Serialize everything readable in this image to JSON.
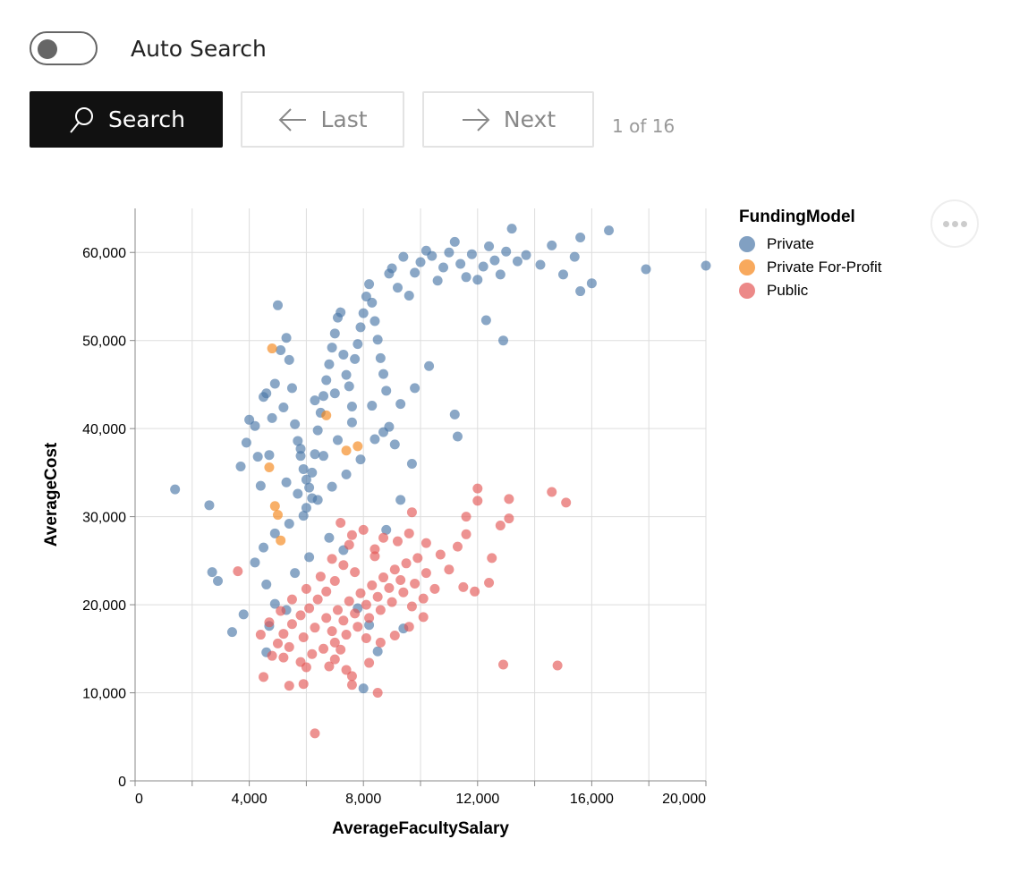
{
  "controls": {
    "auto_search_label": "Auto Search",
    "auto_search_on": false,
    "search_label": "Search",
    "last_label": "Last",
    "next_label": "Next",
    "page_indicator": "1 of 16"
  },
  "chart_data": {
    "type": "scatter",
    "xlabel": "AverageFacultySalary",
    "ylabel": "AverageCost",
    "xlim": [
      0,
      20000
    ],
    "ylim": [
      0,
      65000
    ],
    "x_ticks": [
      "0",
      "4,000",
      "8,000",
      "12,000",
      "16,000",
      "20,000"
    ],
    "y_ticks": [
      "0",
      "10,000",
      "20,000",
      "30,000",
      "40,000",
      "50,000",
      "60,000"
    ],
    "grid": true,
    "legend": {
      "title": "FundingModel",
      "placement": "top-right"
    },
    "series": [
      {
        "name": "Private",
        "color": "#4c78a8",
        "points": [
          [
            1400,
            33100
          ],
          [
            2600,
            31300
          ],
          [
            2700,
            23700
          ],
          [
            2900,
            22700
          ],
          [
            3400,
            16900
          ],
          [
            3800,
            18900
          ],
          [
            3700,
            35700
          ],
          [
            3900,
            38400
          ],
          [
            4000,
            41000
          ],
          [
            4200,
            40300
          ],
          [
            4300,
            36800
          ],
          [
            4400,
            33500
          ],
          [
            4500,
            43600
          ],
          [
            4600,
            44000
          ],
          [
            4700,
            37000
          ],
          [
            4800,
            41200
          ],
          [
            4900,
            45100
          ],
          [
            5000,
            54000
          ],
          [
            5100,
            48900
          ],
          [
            5300,
            50300
          ],
          [
            5400,
            47800
          ],
          [
            5200,
            42400
          ],
          [
            5500,
            44600
          ],
          [
            5600,
            40500
          ],
          [
            5700,
            38600
          ],
          [
            5800,
            36900
          ],
          [
            5900,
            35400
          ],
          [
            6000,
            34200
          ],
          [
            6100,
            33300
          ],
          [
            6200,
            32100
          ],
          [
            6300,
            37100
          ],
          [
            6400,
            39800
          ],
          [
            6500,
            41800
          ],
          [
            6600,
            43700
          ],
          [
            6700,
            45500
          ],
          [
            6800,
            47300
          ],
          [
            6900,
            49200
          ],
          [
            7000,
            50800
          ],
          [
            7100,
            52600
          ],
          [
            7200,
            53200
          ],
          [
            7300,
            48400
          ],
          [
            7400,
            46100
          ],
          [
            7500,
            44800
          ],
          [
            7600,
            42500
          ],
          [
            7700,
            47900
          ],
          [
            7800,
            49600
          ],
          [
            7900,
            51500
          ],
          [
            8000,
            53100
          ],
          [
            8100,
            55000
          ],
          [
            8200,
            56400
          ],
          [
            8300,
            54300
          ],
          [
            8400,
            52200
          ],
          [
            8500,
            50100
          ],
          [
            8600,
            48000
          ],
          [
            8700,
            46200
          ],
          [
            8800,
            44300
          ],
          [
            8900,
            57600
          ],
          [
            9000,
            58200
          ],
          [
            9200,
            56000
          ],
          [
            9400,
            59500
          ],
          [
            9600,
            55100
          ],
          [
            9800,
            57700
          ],
          [
            10000,
            58900
          ],
          [
            10200,
            60200
          ],
          [
            10400,
            59600
          ],
          [
            10600,
            56800
          ],
          [
            10800,
            58300
          ],
          [
            11000,
            60000
          ],
          [
            11200,
            61200
          ],
          [
            11400,
            58700
          ],
          [
            11600,
            57200
          ],
          [
            11800,
            59800
          ],
          [
            12000,
            56900
          ],
          [
            12200,
            58400
          ],
          [
            12400,
            60700
          ],
          [
            12600,
            59100
          ],
          [
            12800,
            57500
          ],
          [
            13000,
            60100
          ],
          [
            13200,
            62700
          ],
          [
            13400,
            59000
          ],
          [
            13700,
            59700
          ],
          [
            14200,
            58600
          ],
          [
            14600,
            60800
          ],
          [
            15000,
            57500
          ],
          [
            15400,
            59500
          ],
          [
            15600,
            61700
          ],
          [
            15600,
            55600
          ],
          [
            16000,
            56500
          ],
          [
            16600,
            62500
          ],
          [
            17900,
            58100
          ],
          [
            20000,
            58500
          ],
          [
            12300,
            52300
          ],
          [
            12900,
            50000
          ],
          [
            11300,
            39100
          ],
          [
            11200,
            41600
          ],
          [
            10300,
            47100
          ],
          [
            9800,
            44600
          ],
          [
            9300,
            42800
          ],
          [
            8900,
            40200
          ],
          [
            8400,
            38800
          ],
          [
            7900,
            36500
          ],
          [
            7400,
            34800
          ],
          [
            6900,
            33400
          ],
          [
            6400,
            31900
          ],
          [
            5900,
            30100
          ],
          [
            5400,
            29200
          ],
          [
            4900,
            28100
          ],
          [
            4500,
            26500
          ],
          [
            4200,
            24800
          ],
          [
            4600,
            22300
          ],
          [
            4900,
            20100
          ],
          [
            5300,
            19400
          ],
          [
            4700,
            17600
          ],
          [
            4600,
            14600
          ],
          [
            8000,
            10500
          ],
          [
            8500,
            14700
          ],
          [
            8200,
            17700
          ],
          [
            7800,
            19600
          ],
          [
            7300,
            26200
          ],
          [
            6800,
            27600
          ],
          [
            6100,
            25400
          ],
          [
            5600,
            23600
          ],
          [
            9400,
            17300
          ],
          [
            8800,
            28500
          ],
          [
            9300,
            31900
          ],
          [
            9700,
            36000
          ],
          [
            9100,
            38200
          ],
          [
            6600,
            36900
          ],
          [
            7100,
            38700
          ],
          [
            5800,
            37700
          ],
          [
            6200,
            35000
          ],
          [
            5300,
            33900
          ],
          [
            5700,
            32600
          ],
          [
            6000,
            31000
          ],
          [
            7600,
            40700
          ],
          [
            8300,
            42600
          ],
          [
            8700,
            39600
          ],
          [
            7000,
            44000
          ],
          [
            6300,
            43200
          ]
        ]
      },
      {
        "name": "Private For-Profit",
        "color": "#f58518",
        "points": [
          [
            4800,
            49100
          ],
          [
            6700,
            41500
          ],
          [
            7400,
            37500
          ],
          [
            7800,
            38000
          ],
          [
            5000,
            30200
          ],
          [
            4900,
            31200
          ],
          [
            5100,
            27300
          ],
          [
            4700,
            35600
          ]
        ]
      },
      {
        "name": "Public",
        "color": "#e45756",
        "points": [
          [
            6300,
            5400
          ],
          [
            8500,
            10000
          ],
          [
            7600,
            10900
          ],
          [
            5400,
            10800
          ],
          [
            5900,
            11000
          ],
          [
            4500,
            11800
          ],
          [
            7600,
            11900
          ],
          [
            8200,
            13400
          ],
          [
            7000,
            13800
          ],
          [
            5800,
            13500
          ],
          [
            5200,
            14000
          ],
          [
            4800,
            14200
          ],
          [
            14800,
            13100
          ],
          [
            12900,
            13200
          ],
          [
            3600,
            23800
          ],
          [
            14600,
            32800
          ],
          [
            15100,
            31600
          ],
          [
            13100,
            32000
          ],
          [
            12000,
            33200
          ],
          [
            12500,
            25300
          ],
          [
            12400,
            22500
          ],
          [
            12800,
            29000
          ],
          [
            13100,
            29800
          ],
          [
            11600,
            30000
          ],
          [
            12000,
            31800
          ],
          [
            11600,
            28000
          ],
          [
            11300,
            26600
          ],
          [
            11000,
            24000
          ],
          [
            11500,
            22000
          ],
          [
            11900,
            21500
          ],
          [
            10700,
            25700
          ],
          [
            10200,
            27000
          ],
          [
            9600,
            28100
          ],
          [
            9200,
            27200
          ],
          [
            8700,
            27600
          ],
          [
            8000,
            28500
          ],
          [
            7600,
            27900
          ],
          [
            7300,
            24500
          ],
          [
            7000,
            22700
          ],
          [
            6700,
            21500
          ],
          [
            6400,
            20600
          ],
          [
            6100,
            19600
          ],
          [
            5800,
            18800
          ],
          [
            5500,
            17800
          ],
          [
            5200,
            16700
          ],
          [
            5000,
            15600
          ],
          [
            5400,
            15200
          ],
          [
            5900,
            16300
          ],
          [
            6300,
            17400
          ],
          [
            6700,
            18500
          ],
          [
            7100,
            19400
          ],
          [
            7500,
            20400
          ],
          [
            7900,
            21300
          ],
          [
            8300,
            22200
          ],
          [
            8700,
            23100
          ],
          [
            9100,
            24000
          ],
          [
            9500,
            24700
          ],
          [
            9900,
            25300
          ],
          [
            10200,
            23600
          ],
          [
            9800,
            22400
          ],
          [
            9400,
            21400
          ],
          [
            9000,
            20300
          ],
          [
            8600,
            19400
          ],
          [
            8200,
            18500
          ],
          [
            7800,
            17500
          ],
          [
            7400,
            16600
          ],
          [
            7000,
            15700
          ],
          [
            6600,
            15000
          ],
          [
            6200,
            14400
          ],
          [
            6900,
            17000
          ],
          [
            7300,
            18200
          ],
          [
            7700,
            19000
          ],
          [
            8100,
            20000
          ],
          [
            8500,
            20900
          ],
          [
            8900,
            21900
          ],
          [
            9300,
            22800
          ],
          [
            9700,
            19800
          ],
          [
            10100,
            20700
          ],
          [
            10500,
            21800
          ],
          [
            10100,
            18600
          ],
          [
            9600,
            17500
          ],
          [
            9100,
            16500
          ],
          [
            8600,
            15700
          ],
          [
            8100,
            16200
          ],
          [
            7200,
            14900
          ],
          [
            6800,
            13000
          ],
          [
            6000,
            12900
          ],
          [
            6500,
            23200
          ],
          [
            6000,
            21800
          ],
          [
            5500,
            20600
          ],
          [
            5100,
            19300
          ],
          [
            4700,
            18000
          ],
          [
            4400,
            16600
          ],
          [
            6900,
            25200
          ],
          [
            7700,
            23700
          ],
          [
            8400,
            25500
          ],
          [
            9700,
            30500
          ],
          [
            8400,
            26300
          ],
          [
            7200,
            29300
          ],
          [
            7500,
            26800
          ],
          [
            7400,
            12600
          ]
        ]
      }
    ]
  }
}
